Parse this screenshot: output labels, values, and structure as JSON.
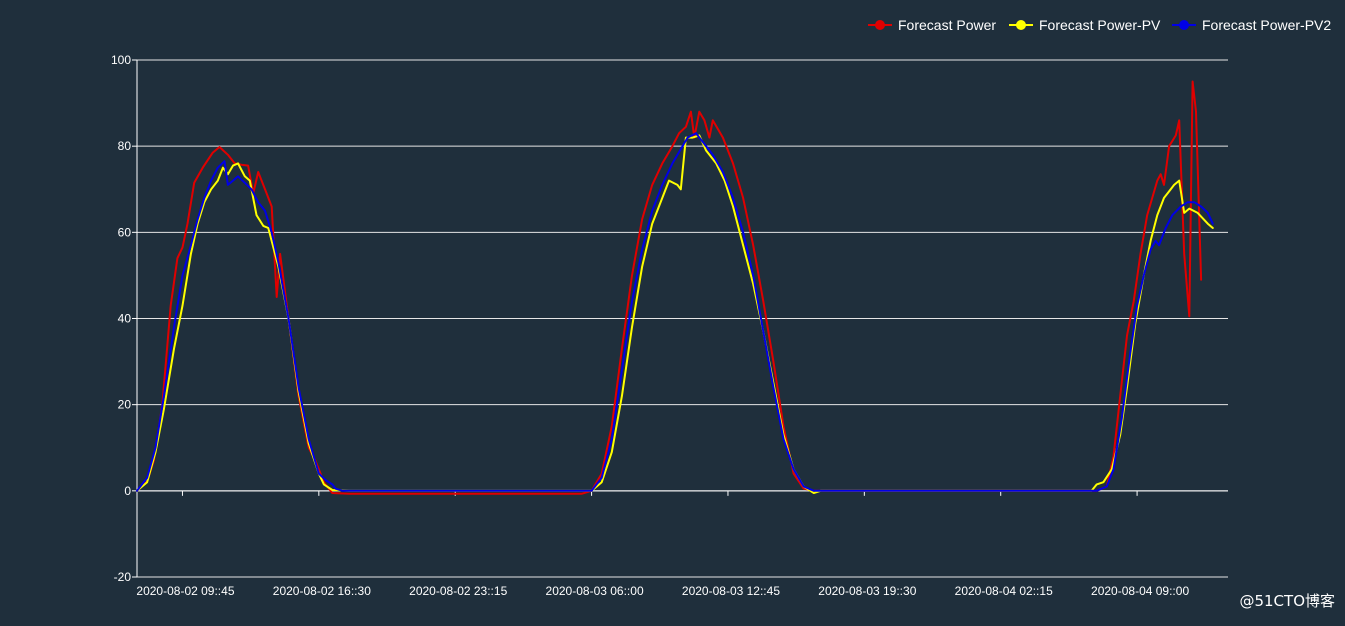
{
  "chart_data": {
    "type": "line",
    "title": "",
    "xlabel": "",
    "ylabel": "",
    "ylim": [
      -20,
      100
    ],
    "yticks": [
      -20,
      0,
      20,
      40,
      60,
      80,
      100
    ],
    "xlim": [
      "2020-08-02 07:30",
      "2020-08-04 13:30"
    ],
    "xticks": [
      "2020-08-02 09::45",
      "2020-08-02 16::30",
      "2020-08-02 23::15",
      "2020-08-03 06::00",
      "2020-08-03 12::45",
      "2020-08-03 19::30",
      "2020-08-04 02::15",
      "2020-08-04 09::00"
    ],
    "xtick_times": [
      "2020-08-02 09:45",
      "2020-08-02 16:30",
      "2020-08-02 23:15",
      "2020-08-03 06:00",
      "2020-08-03 12:45",
      "2020-08-03 19:30",
      "2020-08-04 02:15",
      "2020-08-04 09:00"
    ],
    "grid": "horizontal",
    "legend_position": "top-right",
    "background": "#1f2f3c",
    "series": [
      {
        "name": "Forecast Power",
        "color": "#e00000",
        "points": [
          [
            "2020-08-02 07:30",
            0
          ],
          [
            "2020-08-02 08:00",
            2.2
          ],
          [
            "2020-08-02 08:20",
            7
          ],
          [
            "2020-08-02 08:45",
            20
          ],
          [
            "2020-08-02 09:10",
            43
          ],
          [
            "2020-08-02 09:30",
            54
          ],
          [
            "2020-08-02 09:45",
            56.5
          ],
          [
            "2020-08-02 10:00",
            62
          ],
          [
            "2020-08-02 10:20",
            71.5
          ],
          [
            "2020-08-02 10:45",
            75
          ],
          [
            "2020-08-02 11:15",
            78.5
          ],
          [
            "2020-08-02 11:35",
            79.8
          ],
          [
            "2020-08-02 12:00",
            78
          ],
          [
            "2020-08-02 12:20",
            76
          ],
          [
            "2020-08-02 12:40",
            75.7
          ],
          [
            "2020-08-02 13:00",
            75.5
          ],
          [
            "2020-08-02 13:15",
            69
          ],
          [
            "2020-08-02 13:30",
            74
          ],
          [
            "2020-08-02 13:50",
            70
          ],
          [
            "2020-08-02 14:10",
            66
          ],
          [
            "2020-08-02 14:25",
            45
          ],
          [
            "2020-08-02 14:35",
            55
          ],
          [
            "2020-08-02 15:00",
            40
          ],
          [
            "2020-08-02 15:30",
            22
          ],
          [
            "2020-08-02 16:00",
            10
          ],
          [
            "2020-08-02 16:20",
            7
          ],
          [
            "2020-08-02 16:45",
            2
          ],
          [
            "2020-08-02 17:10",
            -0.5
          ],
          [
            "2020-08-02 18:00",
            -0.7
          ],
          [
            "2020-08-03 05:30",
            -0.7
          ],
          [
            "2020-08-03 06:00",
            0
          ],
          [
            "2020-08-03 06:30",
            4
          ],
          [
            "2020-08-03 07:00",
            15
          ],
          [
            "2020-08-03 07:30",
            33
          ],
          [
            "2020-08-03 08:00",
            50
          ],
          [
            "2020-08-03 08:30",
            63
          ],
          [
            "2020-08-03 09:00",
            71
          ],
          [
            "2020-08-03 09:30",
            76
          ],
          [
            "2020-08-03 10:00",
            80
          ],
          [
            "2020-08-03 10:20",
            83
          ],
          [
            "2020-08-03 10:40",
            84.5
          ],
          [
            "2020-08-03 10:55",
            88
          ],
          [
            "2020-08-03 11:05",
            82
          ],
          [
            "2020-08-03 11:20",
            88
          ],
          [
            "2020-08-03 11:35",
            86
          ],
          [
            "2020-08-03 11:50",
            82
          ],
          [
            "2020-08-03 12:00",
            86
          ],
          [
            "2020-08-03 12:30",
            82
          ],
          [
            "2020-08-03 13:00",
            76
          ],
          [
            "2020-08-03 13:30",
            68
          ],
          [
            "2020-08-03 14:00",
            57
          ],
          [
            "2020-08-03 14:30",
            44
          ],
          [
            "2020-08-03 15:00",
            30
          ],
          [
            "2020-08-03 15:30",
            15
          ],
          [
            "2020-08-03 16:00",
            4
          ],
          [
            "2020-08-03 16:30",
            0.5
          ],
          [
            "2020-08-03 17:00",
            0
          ],
          [
            "2020-08-04 07:00",
            0
          ],
          [
            "2020-08-04 07:30",
            1
          ],
          [
            "2020-08-04 07:50",
            8
          ],
          [
            "2020-08-04 08:10",
            22
          ],
          [
            "2020-08-04 08:30",
            36
          ],
          [
            "2020-08-04 08:40",
            40
          ],
          [
            "2020-08-04 08:50",
            44
          ],
          [
            "2020-08-04 09:10",
            55
          ],
          [
            "2020-08-04 09:30",
            64
          ],
          [
            "2020-08-04 10:00",
            72
          ],
          [
            "2020-08-04 10:10",
            73.5
          ],
          [
            "2020-08-04 10:20",
            71
          ],
          [
            "2020-08-04 10:35",
            80
          ],
          [
            "2020-08-04 10:55",
            82.5
          ],
          [
            "2020-08-04 11:05",
            86
          ],
          [
            "2020-08-04 11:20",
            55
          ],
          [
            "2020-08-04 11:35",
            40.5
          ],
          [
            "2020-08-04 11:45",
            95
          ],
          [
            "2020-08-04 11:55",
            88
          ],
          [
            "2020-08-04 12:10",
            49
          ]
        ]
      },
      {
        "name": "Forecast Power-PV",
        "color": "#ffff00",
        "points": [
          [
            "2020-08-02 07:30",
            0
          ],
          [
            "2020-08-02 08:00",
            2
          ],
          [
            "2020-08-02 08:25",
            9
          ],
          [
            "2020-08-02 08:50",
            19
          ],
          [
            "2020-08-02 09:20",
            33
          ],
          [
            "2020-08-02 09:45",
            43
          ],
          [
            "2020-08-02 10:10",
            55
          ],
          [
            "2020-08-02 10:30",
            62
          ],
          [
            "2020-08-02 10:50",
            67
          ],
          [
            "2020-08-02 11:10",
            70
          ],
          [
            "2020-08-02 11:30",
            72
          ],
          [
            "2020-08-02 11:45",
            75
          ],
          [
            "2020-08-02 12:00",
            73.5
          ],
          [
            "2020-08-02 12:15",
            75.5
          ],
          [
            "2020-08-02 12:30",
            76
          ],
          [
            "2020-08-02 12:50",
            73
          ],
          [
            "2020-08-02 13:05",
            72
          ],
          [
            "2020-08-02 13:25",
            64
          ],
          [
            "2020-08-02 13:45",
            61.5
          ],
          [
            "2020-08-02 14:00",
            61
          ],
          [
            "2020-08-02 14:30",
            52
          ],
          [
            "2020-08-02 15:00",
            40
          ],
          [
            "2020-08-02 15:30",
            23
          ],
          [
            "2020-08-02 16:00",
            11
          ],
          [
            "2020-08-02 16:30",
            4
          ],
          [
            "2020-08-02 16:45",
            1.5
          ],
          [
            "2020-08-02 17:10",
            0.2
          ],
          [
            "2020-08-02 18:00",
            0
          ],
          [
            "2020-08-03 06:00",
            0
          ],
          [
            "2020-08-03 06:30",
            2
          ],
          [
            "2020-08-03 07:00",
            9
          ],
          [
            "2020-08-03 07:30",
            22
          ],
          [
            "2020-08-03 08:00",
            38
          ],
          [
            "2020-08-03 08:30",
            52
          ],
          [
            "2020-08-03 09:00",
            62
          ],
          [
            "2020-08-03 09:30",
            68
          ],
          [
            "2020-08-03 09:50",
            72
          ],
          [
            "2020-08-03 10:15",
            71
          ],
          [
            "2020-08-03 10:25",
            70
          ],
          [
            "2020-08-03 10:40",
            82
          ],
          [
            "2020-08-03 11:00",
            82
          ],
          [
            "2020-08-03 11:20",
            82.5
          ],
          [
            "2020-08-03 11:40",
            79
          ],
          [
            "2020-08-03 12:10",
            76
          ],
          [
            "2020-08-03 12:35",
            72
          ],
          [
            "2020-08-03 13:00",
            66
          ],
          [
            "2020-08-03 13:30",
            57
          ],
          [
            "2020-08-03 14:00",
            48
          ],
          [
            "2020-08-03 14:30",
            37
          ],
          [
            "2020-08-03 15:00",
            25
          ],
          [
            "2020-08-03 15:30",
            13
          ],
          [
            "2020-08-03 16:00",
            5
          ],
          [
            "2020-08-03 16:30",
            1
          ],
          [
            "2020-08-03 17:00",
            -0.5
          ],
          [
            "2020-08-03 17:20",
            0
          ],
          [
            "2020-08-04 06:45",
            0
          ],
          [
            "2020-08-04 07:00",
            1.5
          ],
          [
            "2020-08-04 07:20",
            2
          ],
          [
            "2020-08-04 07:45",
            5
          ],
          [
            "2020-08-04 08:10",
            13
          ],
          [
            "2020-08-04 08:30",
            24
          ],
          [
            "2020-08-04 08:55",
            39
          ],
          [
            "2020-08-04 09:20",
            50
          ],
          [
            "2020-08-04 09:40",
            58
          ],
          [
            "2020-08-04 10:00",
            64
          ],
          [
            "2020-08-04 10:20",
            68
          ],
          [
            "2020-08-04 10:35",
            69.5
          ],
          [
            "2020-08-04 10:50",
            71
          ],
          [
            "2020-08-04 11:05",
            72
          ],
          [
            "2020-08-04 11:20",
            64.5
          ],
          [
            "2020-08-04 11:35",
            65.5
          ],
          [
            "2020-08-04 12:00",
            64.5
          ],
          [
            "2020-08-04 12:30",
            62
          ],
          [
            "2020-08-04 12:45",
            61
          ]
        ]
      },
      {
        "name": "Forecast Power-PV2",
        "color": "#0000e6",
        "points": [
          [
            "2020-08-02 07:30",
            0
          ],
          [
            "2020-08-02 08:00",
            3
          ],
          [
            "2020-08-02 08:25",
            10
          ],
          [
            "2020-08-02 08:50",
            22
          ],
          [
            "2020-08-02 09:20",
            38
          ],
          [
            "2020-08-02 09:45",
            50
          ],
          [
            "2020-08-02 10:10",
            57
          ],
          [
            "2020-08-02 10:30",
            63
          ],
          [
            "2020-08-02 10:50",
            68
          ],
          [
            "2020-08-02 11:10",
            72
          ],
          [
            "2020-08-02 11:30",
            75
          ],
          [
            "2020-08-02 11:50",
            76.5
          ],
          [
            "2020-08-02 12:00",
            71
          ],
          [
            "2020-08-02 12:15",
            72
          ],
          [
            "2020-08-02 12:30",
            73
          ],
          [
            "2020-08-02 12:50",
            71.5
          ],
          [
            "2020-08-02 13:10",
            70
          ],
          [
            "2020-08-02 13:30",
            67
          ],
          [
            "2020-08-02 13:50",
            65
          ],
          [
            "2020-08-02 14:10",
            60
          ],
          [
            "2020-08-02 14:30",
            53
          ],
          [
            "2020-08-02 15:00",
            40
          ],
          [
            "2020-08-02 15:30",
            24
          ],
          [
            "2020-08-02 16:00",
            12
          ],
          [
            "2020-08-02 16:30",
            4
          ],
          [
            "2020-08-02 16:50",
            2.5
          ],
          [
            "2020-08-02 17:10",
            1.5
          ],
          [
            "2020-08-02 17:20",
            0.5
          ],
          [
            "2020-08-02 17:40",
            0
          ],
          [
            "2020-08-03 06:00",
            0
          ],
          [
            "2020-08-03 06:30",
            3
          ],
          [
            "2020-08-03 07:00",
            12
          ],
          [
            "2020-08-03 07:30",
            28
          ],
          [
            "2020-08-03 08:00",
            44
          ],
          [
            "2020-08-03 08:30",
            56
          ],
          [
            "2020-08-03 09:00",
            65
          ],
          [
            "2020-08-03 09:30",
            71
          ],
          [
            "2020-08-03 10:00",
            76
          ],
          [
            "2020-08-03 10:30",
            80
          ],
          [
            "2020-08-03 10:45",
            82
          ],
          [
            "2020-08-03 11:10",
            83
          ],
          [
            "2020-08-03 11:30",
            81
          ],
          [
            "2020-08-03 12:00",
            78
          ],
          [
            "2020-08-03 12:30",
            74
          ],
          [
            "2020-08-03 13:00",
            68
          ],
          [
            "2020-08-03 13:30",
            60
          ],
          [
            "2020-08-03 14:00",
            50
          ],
          [
            "2020-08-03 14:30",
            37
          ],
          [
            "2020-08-03 15:00",
            24
          ],
          [
            "2020-08-03 15:30",
            12
          ],
          [
            "2020-08-03 16:00",
            5
          ],
          [
            "2020-08-03 16:30",
            1
          ],
          [
            "2020-08-03 17:00",
            0
          ],
          [
            "2020-08-04 07:00",
            0
          ],
          [
            "2020-08-04 07:30",
            1
          ],
          [
            "2020-08-04 07:50",
            5
          ],
          [
            "2020-08-04 08:15",
            17
          ],
          [
            "2020-08-04 08:40",
            32
          ],
          [
            "2020-08-04 09:00",
            43
          ],
          [
            "2020-08-04 09:20",
            50
          ],
          [
            "2020-08-04 09:40",
            56
          ],
          [
            "2020-08-04 09:55",
            58
          ],
          [
            "2020-08-04 10:05",
            57
          ],
          [
            "2020-08-04 10:25",
            61
          ],
          [
            "2020-08-04 10:45",
            64
          ],
          [
            "2020-08-04 11:10",
            66
          ],
          [
            "2020-08-04 11:30",
            67
          ],
          [
            "2020-08-04 11:50",
            67
          ],
          [
            "2020-08-04 12:10",
            66
          ],
          [
            "2020-08-04 12:30",
            64.5
          ],
          [
            "2020-08-04 12:45",
            62
          ]
        ]
      }
    ]
  },
  "watermark": "@51CTO博客"
}
